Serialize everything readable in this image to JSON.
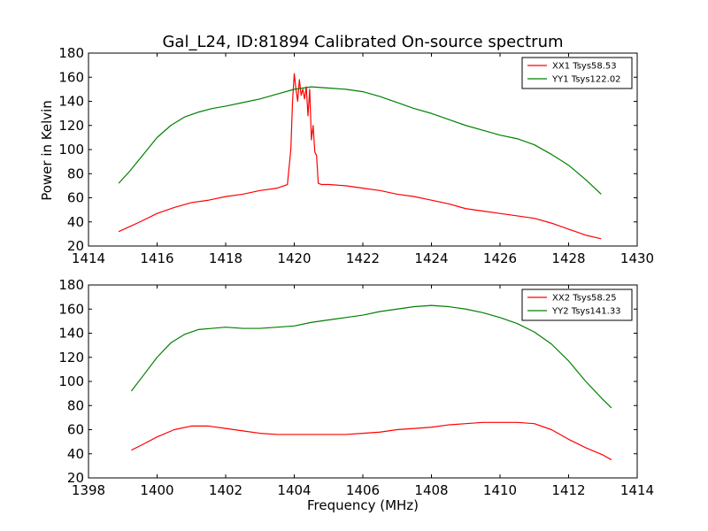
{
  "figure": {
    "title": "Gal_L24, ID:81894 Calibrated On-source spectrum",
    "ylabel": "Power in Kelvin",
    "xlabel": "Frequency (MHz)",
    "colors": {
      "XX": "#ff0000",
      "YY": "#008000",
      "axes": "#000000",
      "background": "#ffffff"
    }
  },
  "chart_data": [
    {
      "type": "line",
      "title": "Gal_L24, ID:81894 Calibrated On-source spectrum",
      "xlabel": "",
      "ylabel": "Power in Kelvin",
      "xlim": [
        1414,
        1430
      ],
      "ylim": [
        20,
        180
      ],
      "xticks": [
        1414,
        1416,
        1418,
        1420,
        1422,
        1424,
        1426,
        1428,
        1430
      ],
      "yticks": [
        20,
        40,
        60,
        80,
        100,
        120,
        140,
        160,
        180
      ],
      "grid": false,
      "legend_position": "top-right",
      "series": [
        {
          "name": "XX1 Tsys58.53",
          "color": "#ff0000",
          "x": [
            1414.88,
            1415.5,
            1416.0,
            1416.5,
            1417.0,
            1417.5,
            1418.0,
            1418.5,
            1419.0,
            1419.5,
            1419.8,
            1419.9,
            1419.95,
            1420.0,
            1420.05,
            1420.1,
            1420.15,
            1420.2,
            1420.25,
            1420.3,
            1420.35,
            1420.4,
            1420.45,
            1420.5,
            1420.55,
            1420.6,
            1420.65,
            1420.7,
            1420.8,
            1421.0,
            1421.5,
            1422.0,
            1422.5,
            1423.0,
            1423.5,
            1424.0,
            1424.5,
            1425.0,
            1425.5,
            1426.0,
            1426.5,
            1427.0,
            1427.5,
            1428.0,
            1428.5,
            1428.95
          ],
          "y": [
            32,
            40,
            47,
            52,
            56,
            58,
            61,
            63,
            66,
            68,
            71,
            100,
            140,
            163,
            150,
            140,
            158,
            145,
            150,
            142,
            152,
            128,
            150,
            108,
            120,
            98,
            95,
            72,
            71,
            71,
            70,
            68,
            66,
            63,
            61,
            58,
            55,
            51,
            49,
            47,
            45,
            43,
            39,
            34,
            29,
            26
          ]
        },
        {
          "name": "YY1 Tsys122.02",
          "color": "#008000",
          "x": [
            1414.88,
            1415.2,
            1415.6,
            1416.0,
            1416.4,
            1416.8,
            1417.2,
            1417.6,
            1418.0,
            1418.5,
            1419.0,
            1419.5,
            1420.0,
            1420.5,
            1421.0,
            1421.5,
            1422.0,
            1422.5,
            1423.0,
            1423.5,
            1424.0,
            1424.5,
            1425.0,
            1425.5,
            1426.0,
            1426.5,
            1427.0,
            1427.5,
            1428.0,
            1428.5,
            1428.95
          ],
          "y": [
            72,
            82,
            96,
            110,
            120,
            127,
            131,
            134,
            136,
            139,
            142,
            146,
            150,
            152,
            151,
            150,
            148,
            144,
            139,
            134,
            130,
            125,
            120,
            116,
            112,
            109,
            104,
            96,
            87,
            75,
            63
          ]
        }
      ]
    },
    {
      "type": "line",
      "title": "",
      "xlabel": "Frequency (MHz)",
      "ylabel": "",
      "xlim": [
        1398,
        1414
      ],
      "ylim": [
        20,
        180
      ],
      "xticks": [
        1398,
        1400,
        1402,
        1404,
        1406,
        1408,
        1410,
        1412,
        1414
      ],
      "yticks": [
        20,
        40,
        60,
        80,
        100,
        120,
        140,
        160,
        180
      ],
      "grid": false,
      "legend_position": "top-right",
      "series": [
        {
          "name": "XX2 Tsys58.25",
          "color": "#ff0000",
          "x": [
            1399.25,
            1399.6,
            1400.0,
            1400.5,
            1401.0,
            1401.5,
            1402.0,
            1402.5,
            1403.0,
            1403.5,
            1404.0,
            1404.5,
            1405.0,
            1405.5,
            1406.0,
            1406.5,
            1407.0,
            1407.5,
            1408.0,
            1408.5,
            1409.0,
            1409.5,
            1410.0,
            1410.5,
            1411.0,
            1411.5,
            1412.0,
            1412.5,
            1413.0,
            1413.25
          ],
          "y": [
            43,
            48,
            54,
            60,
            63,
            63,
            61,
            59,
            57,
            56,
            56,
            56,
            56,
            56,
            57,
            58,
            60,
            61,
            62,
            64,
            65,
            66,
            66,
            66,
            65,
            60,
            52,
            45,
            39,
            35
          ]
        },
        {
          "name": "YY2 Tsys141.33",
          "color": "#008000",
          "x": [
            1399.25,
            1399.6,
            1400.0,
            1400.4,
            1400.8,
            1401.2,
            1401.6,
            1402.0,
            1402.5,
            1403.0,
            1403.5,
            1404.0,
            1404.5,
            1405.0,
            1405.5,
            1406.0,
            1406.5,
            1407.0,
            1407.5,
            1408.0,
            1408.5,
            1409.0,
            1409.5,
            1410.0,
            1410.5,
            1411.0,
            1411.5,
            1412.0,
            1412.5,
            1413.0,
            1413.25
          ],
          "y": [
            92,
            105,
            120,
            132,
            139,
            143,
            144,
            145,
            144,
            144,
            145,
            146,
            149,
            151,
            153,
            155,
            158,
            160,
            162,
            163,
            162,
            160,
            157,
            153,
            148,
            141,
            131,
            117,
            100,
            85,
            78
          ]
        }
      ]
    }
  ]
}
